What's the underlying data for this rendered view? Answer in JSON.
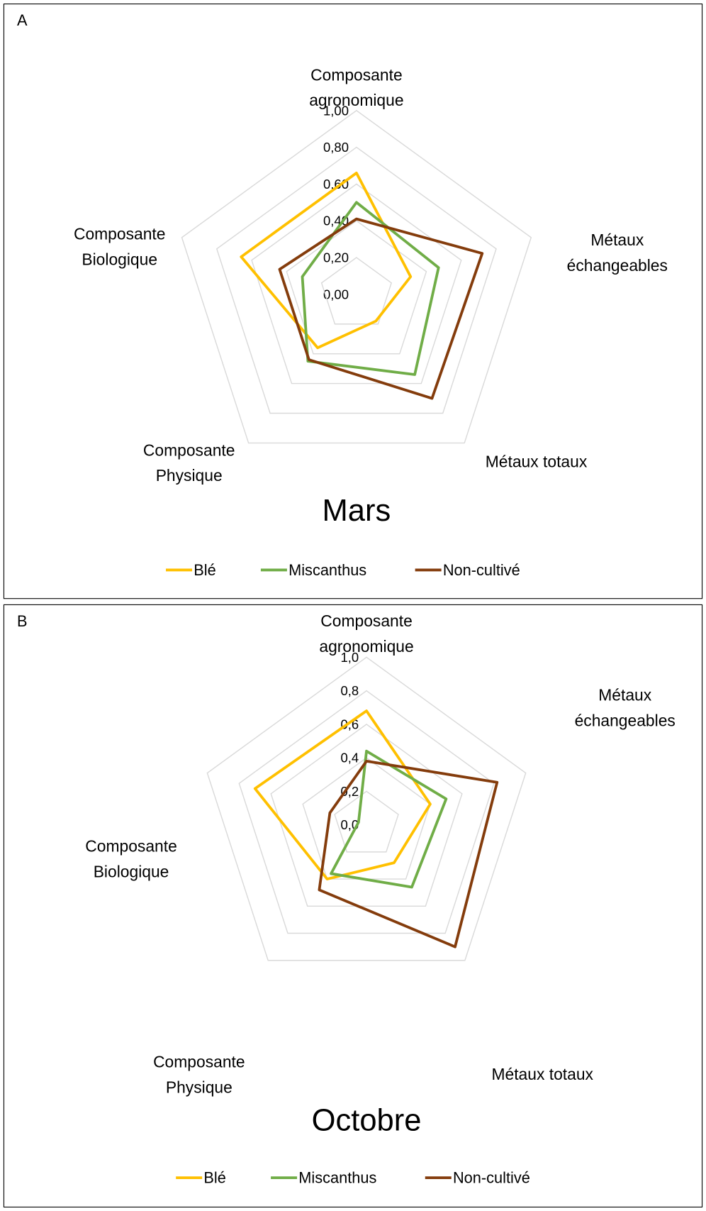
{
  "chart_data": [
    {
      "type": "radar",
      "panel_label": "A",
      "title": "Mars",
      "categories": [
        [
          "Composante",
          "agronomique"
        ],
        [
          "Métaux",
          "échangeables"
        ],
        [
          "Métaux totaux"
        ],
        [
          "Composante",
          "Physique"
        ],
        [
          "Composante",
          "Biologique"
        ]
      ],
      "series": [
        {
          "name": "Blé",
          "color": "#FFC000",
          "values": [
            0.66,
            0.31,
            0.18,
            0.36,
            0.66
          ]
        },
        {
          "name": "Miscanthus",
          "color": "#70AD47",
          "values": [
            0.5,
            0.47,
            0.54,
            0.45,
            0.31
          ]
        },
        {
          "name": "Non-cultivé",
          "color": "#843C0C",
          "values": [
            0.41,
            0.72,
            0.7,
            0.44,
            0.44
          ]
        }
      ],
      "ylim": [
        0,
        1
      ],
      "yticks": [
        {
          "value": 0,
          "label": "0,00"
        },
        {
          "value": 0.2,
          "label": "0,20"
        },
        {
          "value": 0.4,
          "label": "0,40"
        },
        {
          "value": 0.6,
          "label": "0,60"
        },
        {
          "value": 0.8,
          "label": "0,80"
        },
        {
          "value": 1,
          "label": "1,00"
        }
      ],
      "grid": true
    },
    {
      "type": "radar",
      "panel_label": "B",
      "title": "Octobre",
      "categories": [
        [
          "Composante",
          "agronomique"
        ],
        [
          "Métaux",
          "échangeables"
        ],
        [
          "Métaux totaux"
        ],
        [
          "Composante",
          "Physique"
        ],
        [
          "Composante",
          "Biologique"
        ]
      ],
      "series": [
        {
          "name": "Blé",
          "color": "#FFC000",
          "values": [
            0.68,
            0.4,
            0.28,
            0.4,
            0.7
          ]
        },
        {
          "name": "Miscanthus",
          "color": "#70AD47",
          "values": [
            0.44,
            0.5,
            0.46,
            0.36,
            0.05
          ]
        },
        {
          "name": "Non-cultivé",
          "color": "#843C0C",
          "values": [
            0.38,
            0.82,
            0.9,
            0.48,
            0.23
          ]
        }
      ],
      "ylim": [
        0,
        1
      ],
      "yticks": [
        {
          "value": 0,
          "label": "0,0"
        },
        {
          "value": 0.2,
          "label": "0,2"
        },
        {
          "value": 0.4,
          "label": "0,4"
        },
        {
          "value": 0.6,
          "label": "0,6"
        },
        {
          "value": 0.8,
          "label": "0,8"
        },
        {
          "value": 1,
          "label": "1,0"
        }
      ],
      "grid": true
    }
  ]
}
